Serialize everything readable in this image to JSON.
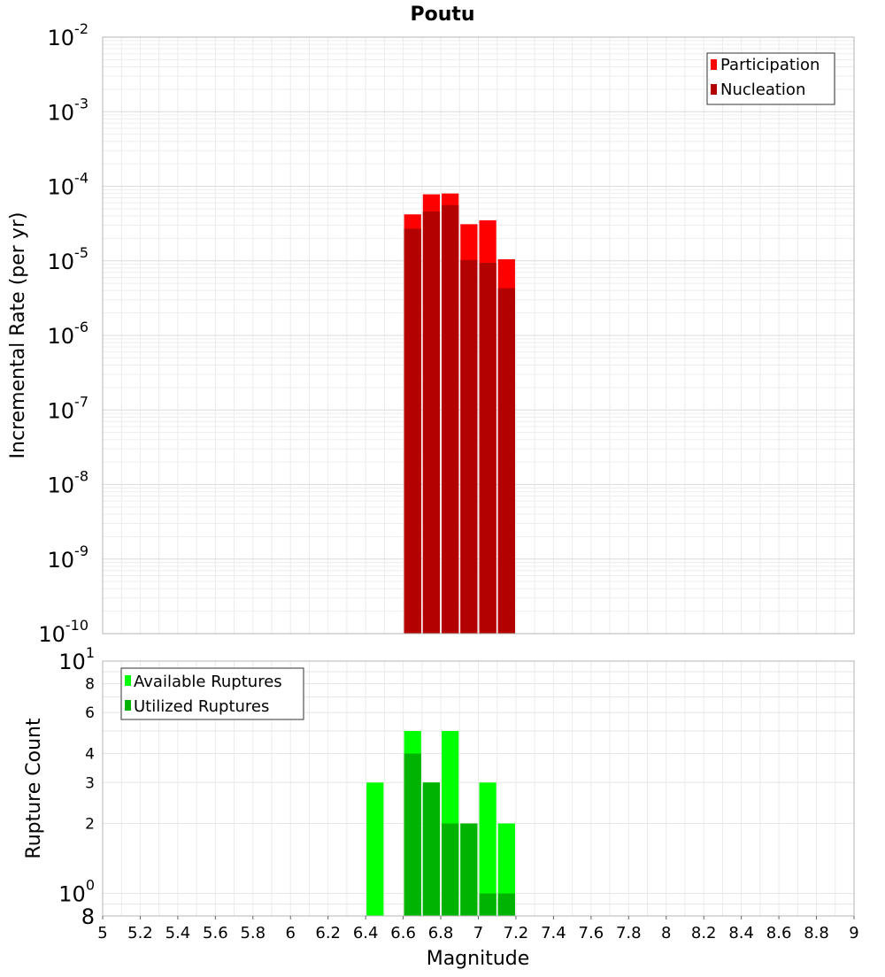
{
  "title": "Poutu",
  "xlabel": "Magnitude",
  "x_ticks": [
    "5",
    "5.2",
    "5.4",
    "5.6",
    "5.8",
    "6",
    "6.2",
    "6.4",
    "6.6",
    "6.8",
    "7",
    "7.2",
    "7.4",
    "7.6",
    "7.8",
    "8",
    "8.2",
    "8.4",
    "8.6",
    "8.8",
    "9"
  ],
  "colors": {
    "participation": "#ff0000",
    "nucleation": "#b30000",
    "available": "#00ff00",
    "utilized": "#00b300"
  },
  "chart_data": [
    {
      "type": "bar",
      "title": "Poutu",
      "xlabel": "Magnitude",
      "ylabel": "Incremental Rate (per yr)",
      "xlim": [
        5,
        9
      ],
      "ylim": [
        1e-10,
        0.01
      ],
      "yscale": "log",
      "grid": true,
      "legend_position": "top-right",
      "y_tick_labels": [
        {
          "base": "10",
          "exp": "-10"
        },
        {
          "base": "10",
          "exp": "-9"
        },
        {
          "base": "10",
          "exp": "-8"
        },
        {
          "base": "10",
          "exp": "-7"
        },
        {
          "base": "10",
          "exp": "-6"
        },
        {
          "base": "10",
          "exp": "-5"
        },
        {
          "base": "10",
          "exp": "-4"
        },
        {
          "base": "10",
          "exp": "-3"
        },
        {
          "base": "10",
          "exp": "-2"
        }
      ],
      "x": [
        6.65,
        6.75,
        6.85,
        6.95,
        7.05,
        7.15
      ],
      "bar_width": 0.1,
      "series": [
        {
          "name": "Participation",
          "values": [
            4.2e-05,
            7.8e-05,
            8e-05,
            3.1e-05,
            3.5e-05,
            1.05e-05
          ]
        },
        {
          "name": "Nucleation",
          "values": [
            2.7e-05,
            4.6e-05,
            5.6e-05,
            1.03e-05,
            9.4e-06,
            4.3e-06
          ]
        }
      ]
    },
    {
      "type": "bar",
      "xlabel": "Magnitude",
      "ylabel": "Rupture Count",
      "xlim": [
        5,
        9
      ],
      "ylim": [
        0.8,
        10
      ],
      "yscale": "log",
      "grid": true,
      "legend_position": "top-left",
      "y_ticks": [
        0.8,
        1,
        2,
        3,
        4,
        6,
        8,
        10
      ],
      "y_tick_labels": [
        {
          "base": "8",
          "exp": ""
        },
        {
          "base": "10",
          "exp": "0"
        },
        {
          "base": "2",
          "exp": ""
        },
        {
          "base": "3",
          "exp": ""
        },
        {
          "base": "4",
          "exp": ""
        },
        {
          "base": "6",
          "exp": ""
        },
        {
          "base": "8",
          "exp": ""
        },
        {
          "base": "10",
          "exp": "1"
        }
      ],
      "x": [
        6.45,
        6.65,
        6.75,
        6.85,
        6.95,
        7.05,
        7.15
      ],
      "bar_width": 0.1,
      "series": [
        {
          "name": "Available Ruptures",
          "values": [
            3,
            5,
            3,
            5,
            2,
            3,
            2
          ]
        },
        {
          "name": "Utilized Ruptures",
          "values": [
            0,
            4,
            3,
            2,
            2,
            1,
            1
          ]
        }
      ]
    }
  ]
}
